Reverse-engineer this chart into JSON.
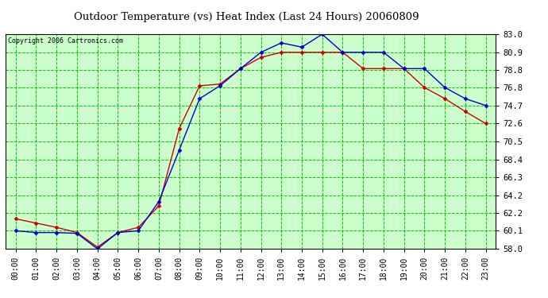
{
  "title": "Outdoor Temperature (vs) Heat Index (Last 24 Hours) 20060809",
  "copyright": "Copyright 2006 Cartronics.com",
  "x_labels": [
    "00:00",
    "01:00",
    "02:00",
    "03:00",
    "04:00",
    "05:00",
    "06:00",
    "07:00",
    "08:00",
    "09:00",
    "10:00",
    "11:00",
    "12:00",
    "13:00",
    "14:00",
    "15:00",
    "16:00",
    "17:00",
    "18:00",
    "19:00",
    "20:00",
    "21:00",
    "22:00",
    "23:00"
  ],
  "temp_blue": [
    60.1,
    59.9,
    59.9,
    59.8,
    58.0,
    59.9,
    60.1,
    63.5,
    69.5,
    75.5,
    77.0,
    79.0,
    80.9,
    82.0,
    81.5,
    83.0,
    80.9,
    80.9,
    80.9,
    79.0,
    79.0,
    76.8,
    75.5,
    74.7
  ],
  "heat_red": [
    61.5,
    61.0,
    60.5,
    59.9,
    58.2,
    59.9,
    60.5,
    63.0,
    72.0,
    77.0,
    77.2,
    79.0,
    80.3,
    80.9,
    80.9,
    80.9,
    80.9,
    79.0,
    79.0,
    79.0,
    76.8,
    75.5,
    74.0,
    72.6
  ],
  "ylim": [
    58.0,
    83.0
  ],
  "yticks": [
    58.0,
    60.1,
    62.2,
    64.2,
    66.3,
    68.4,
    70.5,
    72.6,
    74.7,
    76.8,
    78.8,
    80.9,
    83.0
  ],
  "bg_color": "#ccffcc",
  "grid_color": "#00cc00",
  "blue_color": "#0000cc",
  "red_color": "#cc0000",
  "title_fontsize": 9.5,
  "copyright_fontsize": 6,
  "tick_fontsize": 7,
  "ytick_fontsize": 7.5
}
